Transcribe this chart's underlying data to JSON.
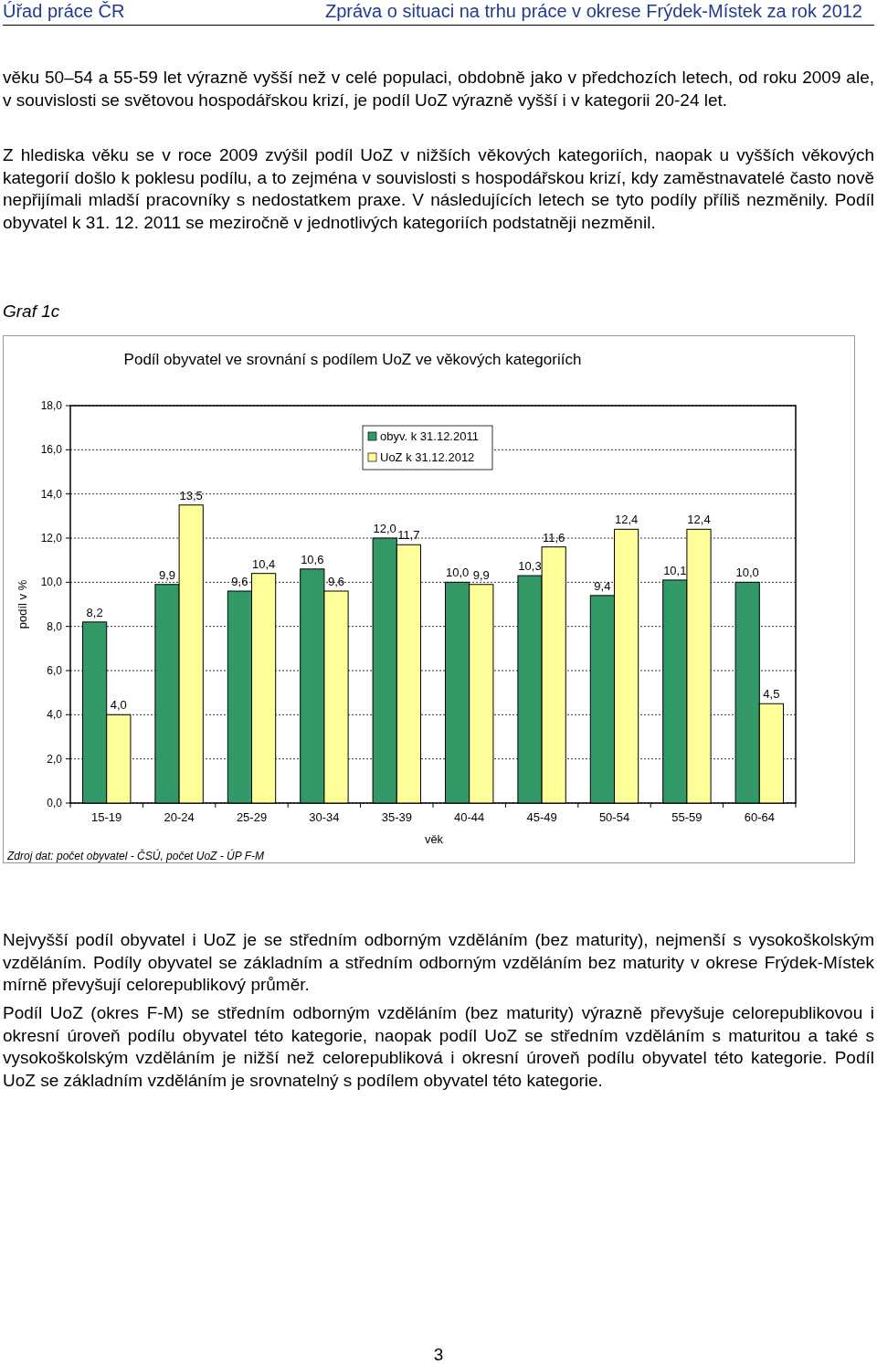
{
  "chart_data": {
    "type": "bar",
    "title": "Podíl obyvatel ve srovnání s podílem UoZ ve věkových kategoriích",
    "xlabel": "věk",
    "ylabel": "podíl v %",
    "categories": [
      "15-19",
      "20-24",
      "25-29",
      "30-34",
      "35-39",
      "40-44",
      "45-49",
      "50-54",
      "55-59",
      "60-64"
    ],
    "series": [
      {
        "name": "obyv. k 31.12.2011",
        "color": "#339966",
        "values": [
          8.2,
          9.9,
          9.6,
          10.6,
          12.0,
          10.0,
          10.3,
          9.4,
          10.1,
          10.0
        ],
        "value_labels": [
          "8,2",
          "9,9",
          "9,6",
          "10,6",
          "12,0",
          "10,0",
          "10,3",
          "9,4",
          "10,1",
          "10,0"
        ]
      },
      {
        "name": "UoZ k 31.12.2012",
        "color": "#ffff99",
        "values": [
          4.0,
          13.5,
          10.4,
          9.6,
          11.7,
          9.9,
          11.6,
          12.4,
          12.4,
          4.5
        ],
        "value_labels": [
          "4,0",
          "13,5",
          "10,4",
          "9,6",
          "11,7",
          "9,9",
          "11,6",
          "12,4",
          "12,4",
          "4,5"
        ]
      }
    ],
    "ylim": [
      0,
      18
    ],
    "yticks": [
      {
        "value": 0,
        "label": "0,0"
      },
      {
        "value": 2,
        "label": "2,0"
      },
      {
        "value": 4,
        "label": "4,0"
      },
      {
        "value": 6,
        "label": "6,0"
      },
      {
        "value": 8,
        "label": "8,0"
      },
      {
        "value": 10,
        "label": "10,0"
      },
      {
        "value": 12,
        "label": "12,0"
      },
      {
        "value": 14,
        "label": "14,0"
      },
      {
        "value": 16,
        "label": "16,0"
      },
      {
        "value": 18,
        "label": "18,0"
      }
    ],
    "grid": "y",
    "legend": "top",
    "annotations": [
      "Úřad práce ČR",
      "Zpráva o situaci na trhu práce v okrese Frýdek-Místek za rok 2012",
      "věku 50–54 a 55-59 let výrazně vyšší než v celé populaci, obdobně jako v předchozích letech, od roku 2009 ale, v souvislosti se světovou hospodářskou krizí, je podíl UoZ výrazně vyšší i v kategorii 20-24 let.",
      "Z hlediska věku se v roce 2009 zvýšil podíl UoZ v nižších věkových kategoriích, naopak u vyšších věkových kategorií došlo k poklesu podílu, a to zejména v souvislosti s hospodářskou krizí, kdy zaměstnavatelé často nově nepřijímali mladší pracovníky s nedostatkem praxe. V následujících letech se tyto podíly příliš nezměnily. Podíl obyvatel k 31. 12. 2011 se meziročně v jednotlivých kategoriích podstatněji nezměnil.",
      "Graf 1c",
      "Zdroj dat: počet obyvatel - ČSÚ, počet UoZ - ÚP F-M",
      "Nejvyšší podíl obyvatel i UoZ je se středním odborným vzděláním (bez maturity), nejmenší s vysokoškolským vzděláním. Podíly obyvatel se základním a středním odborným vzděláním bez maturity v okrese Frýdek-Místek mírně převyšují celorepublikový průměr.",
      "Podíl UoZ (okres F-M) se středním odborným vzděláním (bez maturity) výrazně převyšuje celorepublikovou i okresní úroveň podílu obyvatel této kategorie, naopak podíl UoZ se středním vzděláním s maturitou a také s vysokoškolským vzděláním je nižší než celorepubliková i okresní úroveň podílu obyvatel této kategorie. Podíl UoZ se základním vzděláním je srovnatelný s podílem obyvatel této kategorie.",
      "3"
    ]
  }
}
